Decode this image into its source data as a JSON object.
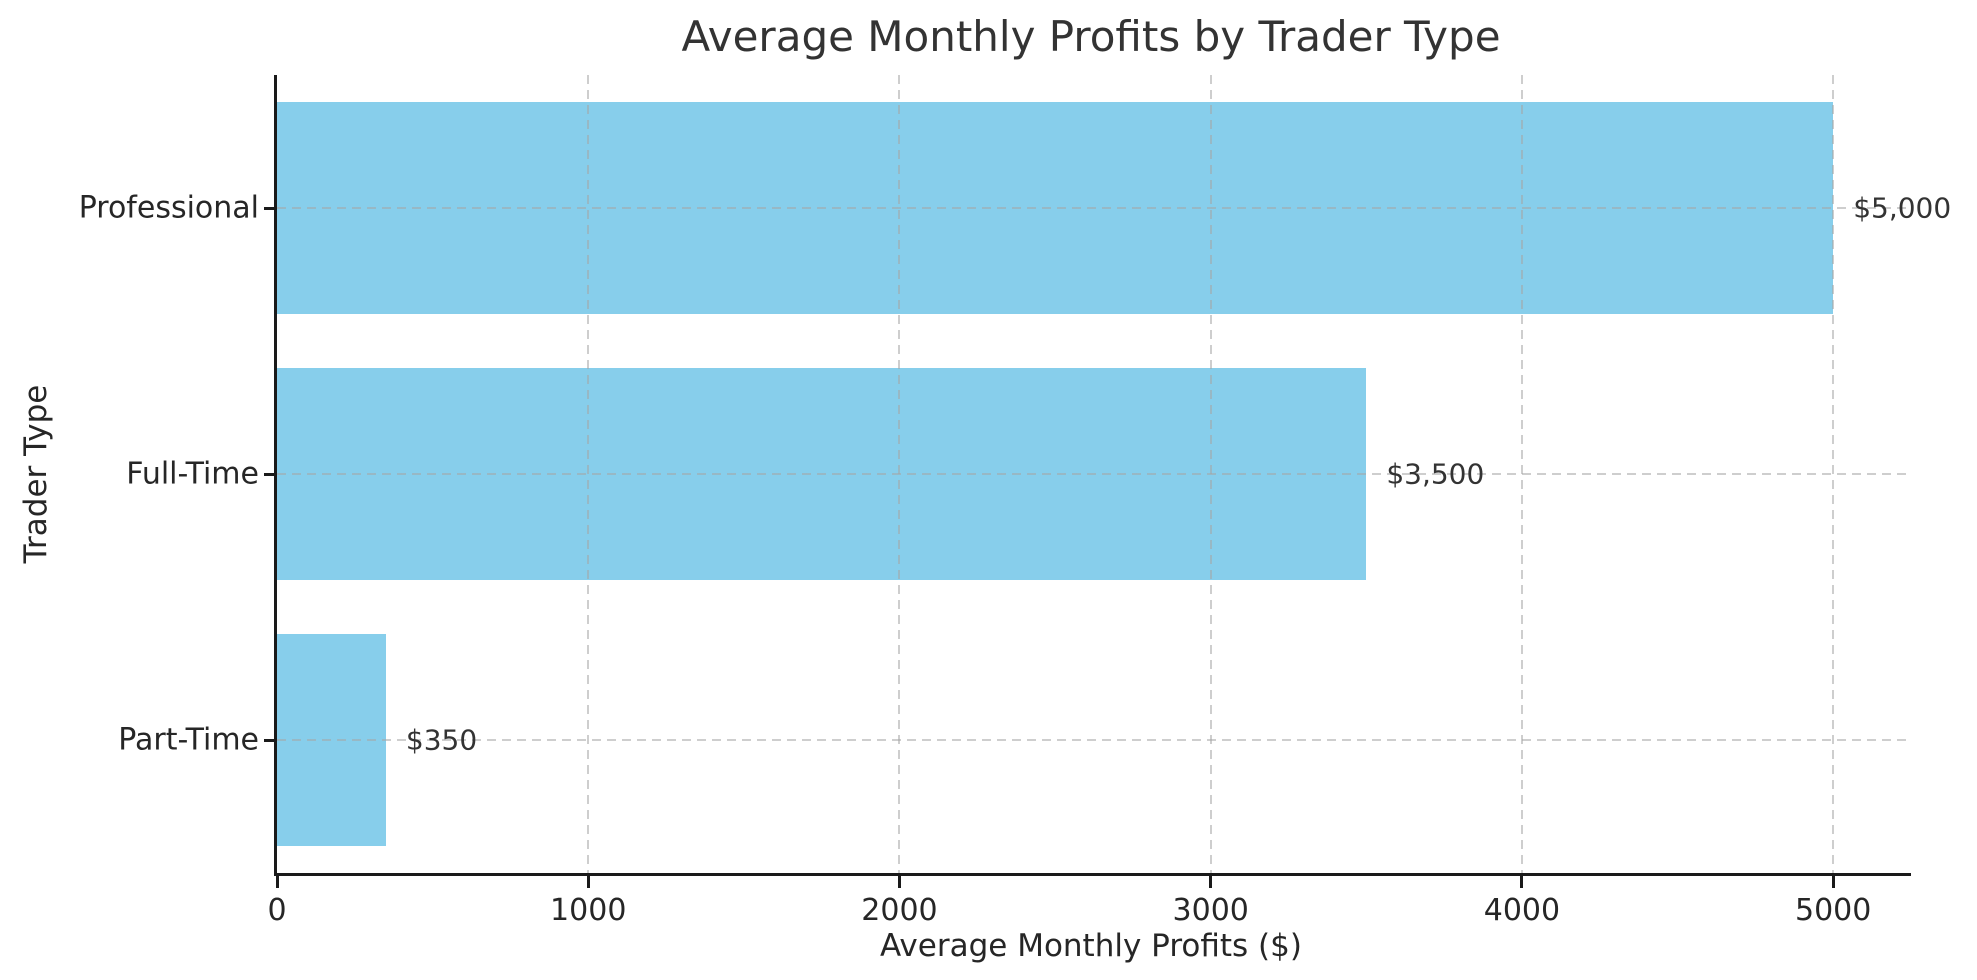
{
  "chart_data": {
    "type": "bar",
    "orientation": "horizontal",
    "title": "Average Monthly Profits by Trader Type",
    "xlabel": "Average Monthly Profits ($)",
    "ylabel": "Trader Type",
    "categories": [
      "Professional",
      "Full-Time",
      "Part-Time"
    ],
    "values": [
      5000,
      3500,
      350
    ],
    "value_labels": [
      "$5,000",
      "$3,500",
      "$350"
    ],
    "x_tick_values": [
      0,
      1000,
      2000,
      3000,
      4000,
      5000
    ],
    "x_tick_labels": [
      "0",
      "1000",
      "2000",
      "3000",
      "4000",
      "5000"
    ],
    "xlim": [
      0,
      5250
    ],
    "bar_color": "#87CEEB",
    "grid": "dashed, both axes, drawn over bars",
    "grid_color": "#c9c9c9",
    "spine_color": "#1a1a1a",
    "text_color": "#262626",
    "background": "#ffffff",
    "legend": "none"
  }
}
